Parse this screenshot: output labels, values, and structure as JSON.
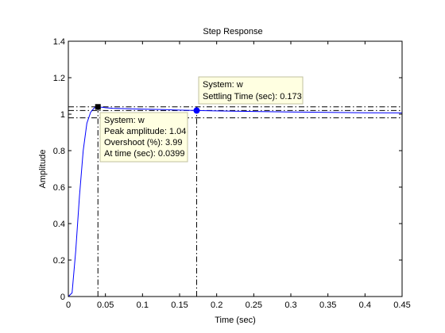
{
  "chart_data": {
    "type": "line",
    "title": "Step Response",
    "xlabel": "Time (sec)",
    "ylabel": "Amplitude",
    "xlim": [
      0,
      0.45
    ],
    "ylim": [
      0,
      1.4
    ],
    "xticks": [
      0,
      0.05,
      0.1,
      0.15,
      0.2,
      0.25,
      0.3,
      0.35,
      0.4,
      0.45
    ],
    "xtick_labels": [
      "0",
      "0.05",
      "0.1",
      "0.15",
      "0.2",
      "0.25",
      "0.3",
      "0.35",
      "0.4",
      "0.45"
    ],
    "yticks": [
      0,
      0.2,
      0.4,
      0.6,
      0.8,
      1,
      1.2,
      1.4
    ],
    "ytick_labels": [
      "0",
      "0.2",
      "0.4",
      "0.6",
      "0.8",
      "1",
      "1.2",
      "1.4"
    ],
    "grid": false,
    "series": [
      {
        "color": "#0000ff",
        "x": [
          0,
          0.005,
          0.01,
          0.015,
          0.02,
          0.025,
          0.03,
          0.035,
          0.0399,
          0.045,
          0.05,
          0.06,
          0.08,
          0.1,
          0.13,
          0.15,
          0.173,
          0.2,
          0.25,
          0.3,
          0.35,
          0.4,
          0.45
        ],
        "y": [
          0,
          0.02,
          0.25,
          0.55,
          0.8,
          0.95,
          1.01,
          1.035,
          1.04,
          1.038,
          1.035,
          1.032,
          1.03,
          1.028,
          1.025,
          1.022,
          1.02,
          1.018,
          1.015,
          1.012,
          1.01,
          1.008,
          1.007
        ]
      }
    ],
    "reference_lines": {
      "color": "#000000",
      "style": "dash-dot",
      "horizontal": [
        1.04,
        1.02,
        0.98
      ],
      "vertical": [
        0.0399,
        0.173
      ]
    },
    "markers": [
      {
        "name": "peak-marker",
        "x": 0.0399,
        "y": 1.04,
        "shape": "square",
        "color": "#000000"
      },
      {
        "name": "settling-marker",
        "x": 0.173,
        "y": 1.02,
        "shape": "circle",
        "color": "#0000ff"
      }
    ],
    "annotations": [
      {
        "name": "peak-datatip",
        "lines": [
          "System: w",
          "Peak amplitude: 1.04",
          "Overshoot (%): 3.99",
          "At time (sec): 0.0399"
        ]
      },
      {
        "name": "settling-datatip",
        "lines": [
          "System: w",
          "Settling Time (sec): 0.173"
        ]
      }
    ],
    "colors": {
      "tip_background": "#ffffe1",
      "tip_border": "#c0c0a0"
    }
  }
}
